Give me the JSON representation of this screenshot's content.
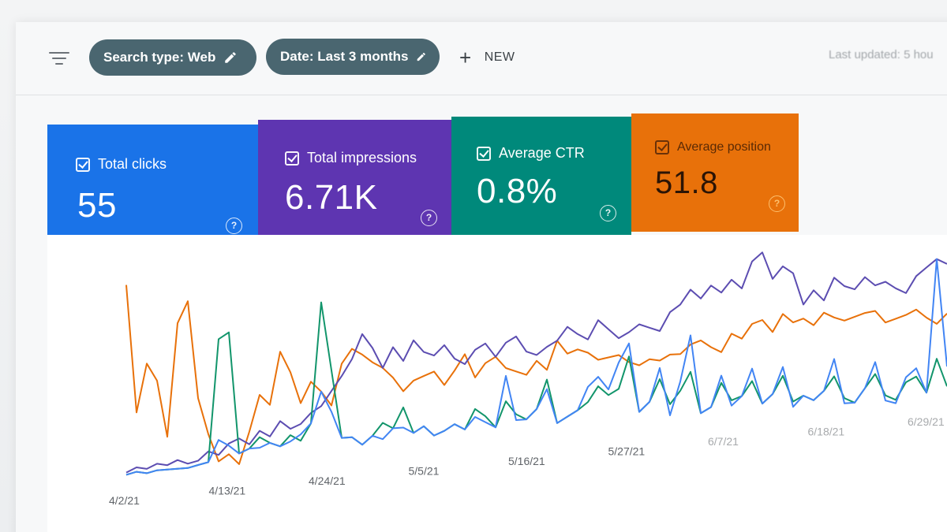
{
  "filterbar": {
    "filter_icon": "filter-lines-icon",
    "chips": [
      {
        "label": "Search type: Web",
        "icon": "pencil-icon"
      },
      {
        "label": "Date: Last 3 months",
        "icon": "pencil-icon"
      }
    ],
    "new_label": "NEW",
    "last_updated": "Last updated: 5 hou"
  },
  "cards": [
    {
      "label": "Total clicks",
      "value": "55",
      "color": "#1a73e8",
      "help": "?"
    },
    {
      "label": "Total impressions",
      "value": "6.71K",
      "color": "#5e35b1",
      "help": "?"
    },
    {
      "label": "Average CTR",
      "value": "0.8%",
      "color": "#00897b",
      "help": "?"
    },
    {
      "label": "Average position",
      "value": "51.8",
      "color": "#e8710a",
      "help": "?"
    }
  ],
  "chart_data": {
    "type": "line",
    "x_tick_labels": [
      "4/2/21",
      "4/13/21",
      "4/24/21",
      "5/5/21",
      "5/16/21",
      "5/27/21",
      "6/7/21",
      "6/18/21",
      "6/29/21"
    ],
    "series_colors": {
      "clicks": "#4285f4",
      "impressions": "#5c4db1",
      "ctr": "#12956b",
      "position": "#e8710a"
    },
    "series": [
      {
        "key": "position",
        "values": [
          88,
          30,
          52,
          44,
          18,
          70,
          80,
          35,
          18,
          5,
          8,
          3,
          18,
          35,
          30,
          55,
          45,
          30,
          40,
          35,
          28,
          48,
          55,
          52,
          48,
          45,
          40,
          33,
          38,
          40,
          42,
          35,
          42,
          50,
          38,
          45,
          48,
          42,
          40,
          38,
          45,
          40,
          55,
          48,
          50,
          48,
          44,
          45,
          46,
          42,
          40,
          43,
          42,
          45,
          45,
          50,
          52,
          48,
          45,
          55,
          52,
          60,
          62,
          55,
          65,
          60,
          62,
          58,
          65,
          62,
          60,
          62,
          64,
          65,
          58,
          60,
          62,
          65,
          60,
          56,
          62
        ]
      },
      {
        "key": "impressions",
        "values": [
          3,
          5,
          4,
          6,
          5,
          7,
          5,
          6,
          10,
          8,
          13,
          15,
          12,
          18,
          15,
          22,
          18,
          20,
          25,
          28,
          35,
          42,
          50,
          62,
          55,
          45,
          55,
          48,
          58,
          52,
          50,
          55,
          48,
          45,
          52,
          55,
          48,
          55,
          58,
          50,
          48,
          52,
          55,
          62,
          58,
          55,
          65,
          60,
          55,
          58,
          62,
          60,
          58,
          68,
          72,
          80,
          75,
          82,
          78,
          85,
          80,
          95,
          100,
          85,
          92,
          88,
          70,
          78,
          72,
          85,
          80,
          78,
          85,
          80,
          82,
          78,
          75,
          85,
          90,
          95,
          92
        ]
      },
      {
        "key": "ctr",
        "values": [
          2,
          3,
          2,
          3,
          3,
          3,
          3,
          4,
          5,
          62,
          65,
          8,
          10,
          15,
          12,
          10,
          15,
          12,
          20,
          78,
          45,
          12,
          12,
          8,
          12,
          18,
          15,
          25,
          12,
          15,
          10,
          12,
          15,
          12,
          22,
          18,
          12,
          25,
          18,
          15,
          20,
          35,
          12,
          15,
          18,
          22,
          30,
          25,
          28,
          45,
          15,
          20,
          32,
          18,
          25,
          35,
          12,
          15,
          28,
          18,
          20,
          28,
          15,
          20,
          30,
          15,
          18,
          15,
          20,
          28,
          15,
          12,
          20,
          28,
          15,
          12,
          22,
          25,
          15,
          35,
          18
        ]
      },
      {
        "key": "clicks",
        "values": [
          2,
          3,
          2,
          3,
          3,
          3,
          3,
          4,
          5,
          15,
          12,
          8,
          10,
          10,
          12,
          10,
          12,
          15,
          20,
          35,
          25,
          12,
          12,
          8,
          12,
          10,
          15,
          15,
          12,
          15,
          10,
          12,
          15,
          12,
          18,
          15,
          12,
          38,
          15,
          15,
          20,
          30,
          12,
          15,
          18,
          30,
          35,
          28,
          42,
          52,
          15,
          20,
          38,
          12,
          30,
          55,
          12,
          15,
          32,
          15,
          20,
          35,
          15,
          20,
          35,
          12,
          18,
          15,
          20,
          38,
          12,
          12,
          20,
          35,
          12,
          10,
          25,
          30,
          15,
          95,
          30
        ]
      }
    ],
    "ylim": [
      0,
      100
    ]
  }
}
